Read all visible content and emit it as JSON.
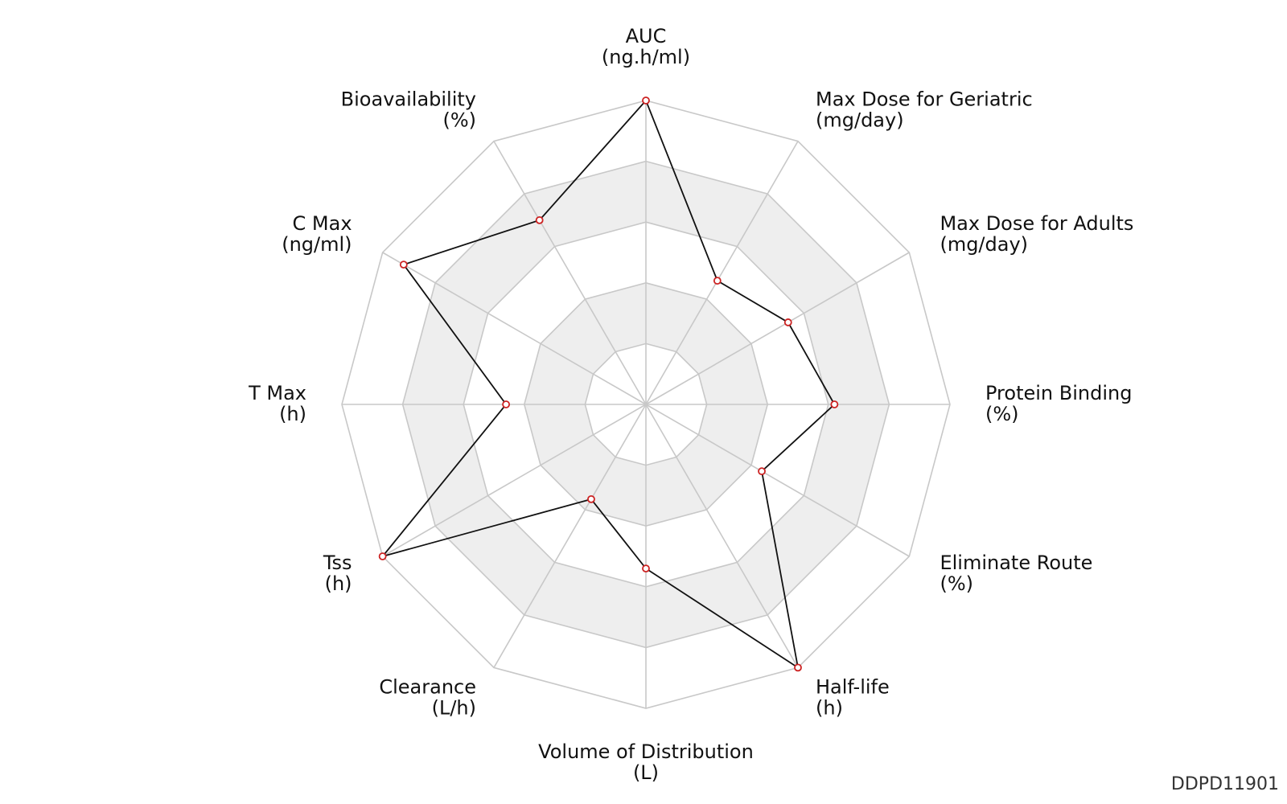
{
  "chart_data": {
    "type": "radar",
    "title": "",
    "axes": [
      {
        "name": "AUC",
        "unit": "(ng.h/ml)"
      },
      {
        "name": "Max Dose for Geriatric",
        "unit": "(mg/day)"
      },
      {
        "name": "Max Dose for Adults",
        "unit": "(mg/day)"
      },
      {
        "name": "Protein Binding",
        "unit": "(%)"
      },
      {
        "name": "Eliminate Route",
        "unit": "(%)"
      },
      {
        "name": "Half-life",
        "unit": "(h)"
      },
      {
        "name": "Volume of Distribution",
        "unit": "(L)"
      },
      {
        "name": "Clearance",
        "unit": "(L/h)"
      },
      {
        "name": "Tss",
        "unit": "(h)"
      },
      {
        "name": "T Max",
        "unit": "(h)"
      },
      {
        "name": "C Max",
        "unit": "(ng/ml)"
      },
      {
        "name": "Bioavailability",
        "unit": "(%)"
      }
    ],
    "series": [
      {
        "values": [
          1.0,
          0.47,
          0.54,
          0.62,
          0.44,
          1.0,
          0.54,
          0.36,
          1.0,
          0.46,
          0.92,
          0.7
        ]
      }
    ],
    "range": [
      0,
      1
    ],
    "rings": 5,
    "colors": {
      "line": "#111111",
      "marker": "#cc2222",
      "grid": "#c8c8c8",
      "band": "#eeeeee"
    }
  },
  "footer": {
    "id": "DDPD11901"
  }
}
